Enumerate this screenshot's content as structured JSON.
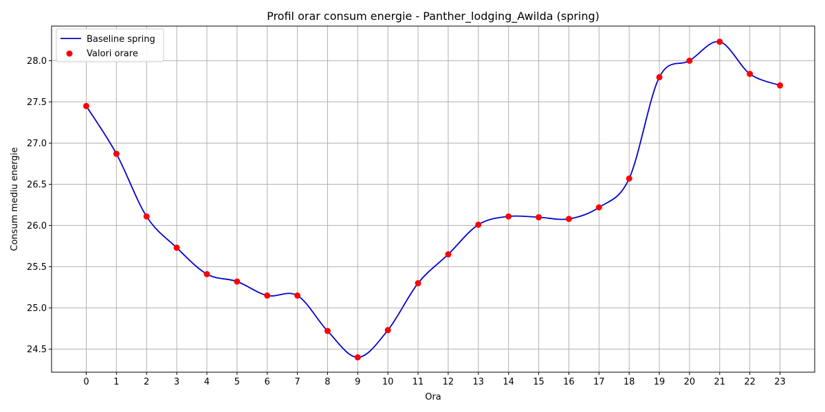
{
  "chart_data": {
    "type": "line",
    "title": "Profil orar consum energie - Panther_lodging_Awilda (spring)",
    "xlabel": "Ora",
    "ylabel": "Consum mediu energie",
    "x": [
      0,
      1,
      2,
      3,
      4,
      5,
      6,
      7,
      8,
      9,
      10,
      11,
      12,
      13,
      14,
      15,
      16,
      17,
      18,
      19,
      20,
      21,
      22,
      23
    ],
    "xlim": [
      -1.15,
      24.15
    ],
    "ylim": [
      24.22,
      28.42
    ],
    "yticks": [
      24.5,
      25.0,
      25.5,
      26.0,
      26.5,
      27.0,
      27.5,
      28.0
    ],
    "ytick_labels": [
      "24.5",
      "25.0",
      "25.5",
      "26.0",
      "26.5",
      "27.0",
      "27.5",
      "28.0"
    ],
    "xtick_labels": [
      "0",
      "1",
      "2",
      "3",
      "4",
      "5",
      "6",
      "7",
      "8",
      "9",
      "10",
      "11",
      "12",
      "13",
      "14",
      "15",
      "16",
      "17",
      "18",
      "19",
      "20",
      "21",
      "22",
      "23"
    ],
    "grid": true,
    "legend_position": "top-left",
    "series": [
      {
        "name": "Baseline spring",
        "kind": "line",
        "color": "#0000cc",
        "values": [
          27.45,
          26.87,
          26.11,
          25.73,
          25.41,
          25.32,
          25.15,
          25.15,
          24.72,
          24.4,
          24.73,
          25.3,
          25.65,
          26.01,
          26.11,
          26.1,
          26.08,
          26.22,
          26.57,
          27.8,
          28.0,
          28.23,
          27.84,
          27.7
        ]
      },
      {
        "name": "Valori orare",
        "kind": "scatter",
        "color": "#ff0000",
        "values": [
          27.45,
          26.87,
          26.11,
          25.73,
          25.41,
          25.32,
          25.15,
          25.15,
          24.72,
          24.4,
          24.73,
          25.3,
          25.65,
          26.01,
          26.11,
          26.1,
          26.08,
          26.22,
          26.57,
          27.8,
          28.0,
          28.23,
          27.84,
          27.7
        ]
      }
    ]
  }
}
